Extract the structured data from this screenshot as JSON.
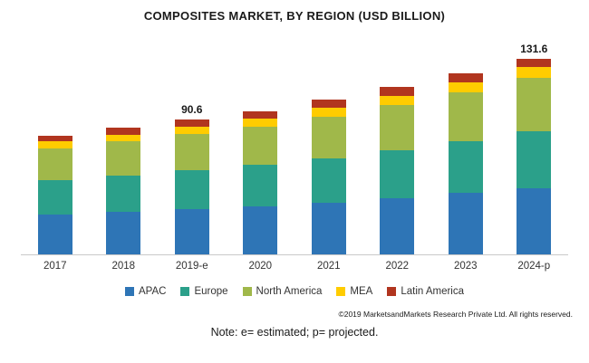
{
  "title": "COMPOSITES MARKET, BY REGION (USD BILLION)",
  "footer": {
    "copyright": "©2019 MarketsandMarkets Research Private Ltd. All rights reserved.",
    "note": "Note: e= estimated; p= projected."
  },
  "chart_data": {
    "type": "bar",
    "stacked": true,
    "title": "COMPOSITES MARKET, BY REGION (USD BILLION)",
    "xlabel": "",
    "ylabel": "USD Billion",
    "ylim": [
      0,
      140
    ],
    "grid": false,
    "legend_position": "bottom",
    "categories": [
      "2017",
      "2018",
      "2019-e",
      "2020",
      "2021",
      "2022",
      "2023",
      "2024-p"
    ],
    "series": [
      {
        "name": "APAC",
        "color": "#2e75b6",
        "values": [
          27.0,
          28.5,
          30.5,
          32.5,
          35.0,
          38.0,
          41.2,
          44.6
        ]
      },
      {
        "name": "Europe",
        "color": "#2ba08a",
        "values": [
          23.0,
          24.5,
          26.0,
          27.5,
          29.8,
          32.3,
          35.0,
          38.0
        ]
      },
      {
        "name": "North America",
        "color": "#a0b84a",
        "values": [
          21.5,
          22.8,
          24.3,
          25.8,
          27.8,
          30.2,
          32.8,
          36.0
        ]
      },
      {
        "name": "MEA",
        "color": "#ffcc00",
        "values": [
          4.5,
          4.8,
          5.1,
          5.4,
          5.9,
          6.3,
          6.8,
          7.2
        ]
      },
      {
        "name": "Latin America",
        "color": "#b1351f",
        "values": [
          4.0,
          4.4,
          4.7,
          4.8,
          5.5,
          5.7,
          5.7,
          5.8
        ]
      }
    ],
    "totals": [
      80.0,
      85.0,
      90.6,
      96.0,
      104.0,
      112.5,
      121.5,
      131.6
    ],
    "total_labels": [
      "",
      "",
      "90.6",
      "",
      "",
      "",
      "",
      "131.6"
    ]
  }
}
